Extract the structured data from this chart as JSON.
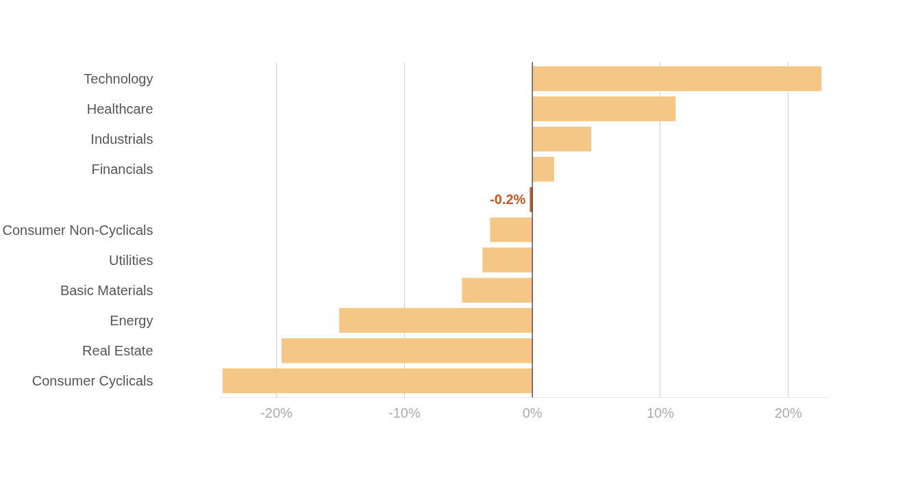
{
  "chart_data": {
    "type": "bar",
    "orientation": "horizontal",
    "categories": [
      "Technology",
      "Healthcare",
      "Industrials",
      "Financials",
      null,
      "Consumer Non-Cyclicals",
      "Utilities",
      "Basic Materials",
      "Energy",
      "Real Estate",
      "Consumer Cyclicals"
    ],
    "values": [
      22.6,
      11.2,
      4.6,
      1.7,
      -0.2,
      -3.3,
      -3.9,
      -5.5,
      -15.1,
      -19.6,
      -24.2
    ],
    "colors": [
      "#f5c787",
      "#f5c787",
      "#f5c787",
      "#f5c787",
      "#c9561f",
      "#f5c787",
      "#f5c787",
      "#f5c787",
      "#f5c787",
      "#f5c787",
      "#f5c787"
    ],
    "value_labels": [
      null,
      null,
      null,
      null,
      "-0.2%",
      null,
      null,
      null,
      null,
      null,
      null
    ],
    "xlim": [
      -24.5,
      23.2
    ],
    "xticks": [
      {
        "value": -20,
        "label": "-20%"
      },
      {
        "value": -10,
        "label": "-10%"
      },
      {
        "value": 0,
        "label": "0%"
      },
      {
        "value": 10,
        "label": "10%"
      },
      {
        "value": 20,
        "label": "20%"
      }
    ],
    "ref_lines": [
      {
        "axis": "x",
        "value": 0,
        "color": "#555555"
      }
    ],
    "grid": "x"
  }
}
